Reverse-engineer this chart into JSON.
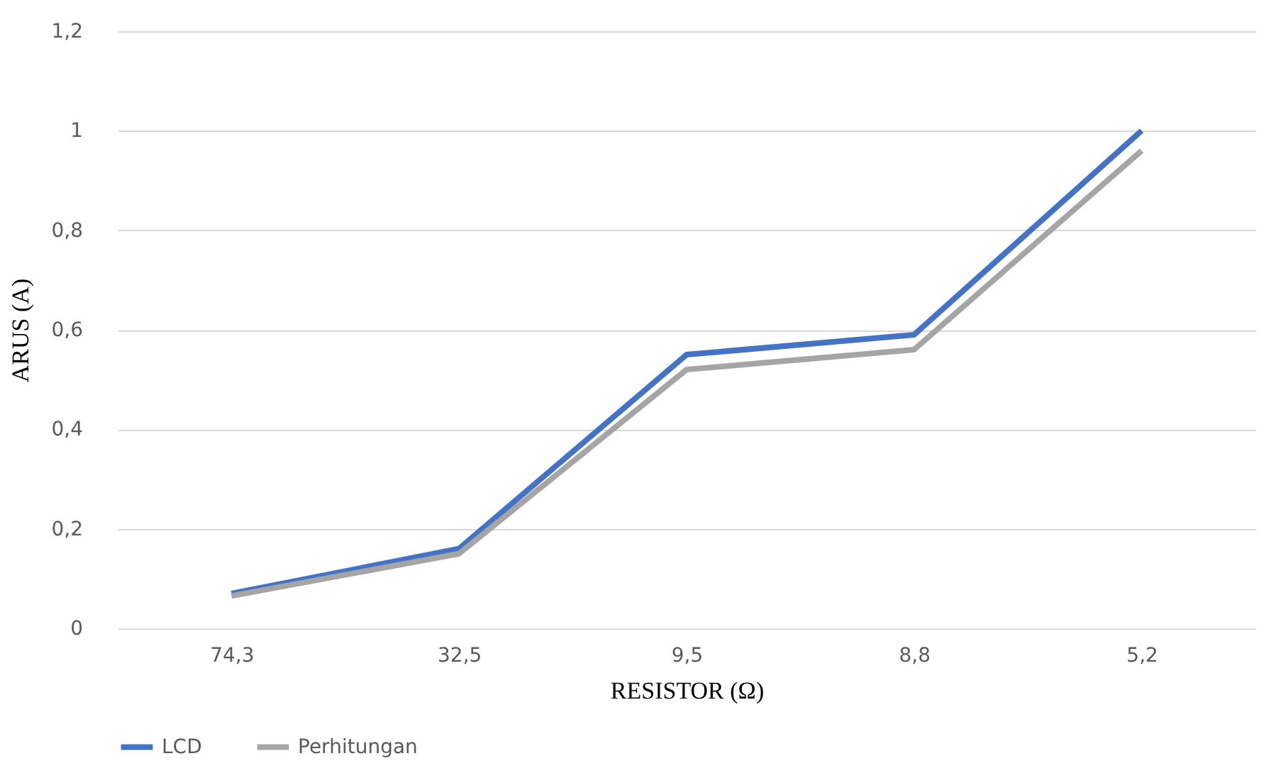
{
  "chart_data": {
    "type": "line",
    "xlabel": "RESISTOR (Ω)",
    "ylabel": "ARUS (A)",
    "categories": [
      "74,3",
      "32,5",
      "9,5",
      "8,8",
      "5,2"
    ],
    "series": [
      {
        "name": "LCD",
        "color": "#4472c4",
        "values": [
          0.07,
          0.16,
          0.55,
          0.59,
          1.0
        ]
      },
      {
        "name": "Perhitungan",
        "color": "#a5a5a5",
        "values": [
          0.065,
          0.15,
          0.52,
          0.56,
          0.96
        ]
      }
    ],
    "ylim": [
      0,
      1.2
    ],
    "yticks": [
      0,
      {
        "value": 0.2,
        "label": "0,2"
      },
      {
        "value": 0.4,
        "label": "0,4"
      },
      {
        "value": 0.6,
        "label": "0,6"
      },
      {
        "value": 0.8,
        "label": "0,8"
      },
      1,
      {
        "value": 1.2,
        "label": "1,2"
      }
    ],
    "grid": "y",
    "legend": "bottom",
    "marker": "none",
    "line_style": "solid"
  }
}
